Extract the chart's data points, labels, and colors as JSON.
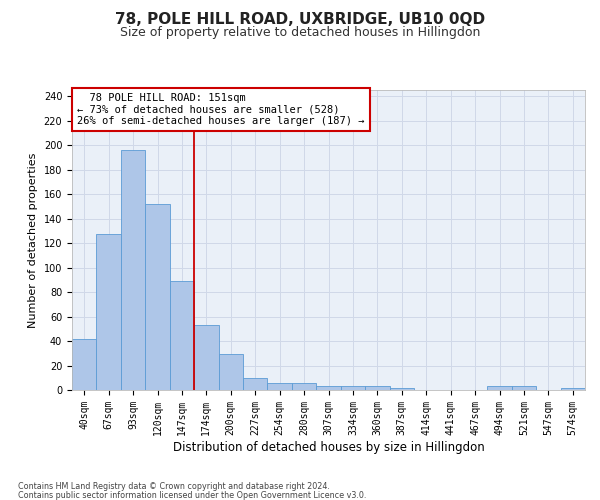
{
  "title1": "78, POLE HILL ROAD, UXBRIDGE, UB10 0QD",
  "title2": "Size of property relative to detached houses in Hillingdon",
  "xlabel": "Distribution of detached houses by size in Hillingdon",
  "ylabel": "Number of detached properties",
  "footer1": "Contains HM Land Registry data © Crown copyright and database right 2024.",
  "footer2": "Contains public sector information licensed under the Open Government Licence v3.0.",
  "annotation_line1": "78 POLE HILL ROAD: 151sqm",
  "annotation_line2": "← 73% of detached houses are smaller (528)",
  "annotation_line3": "26% of semi-detached houses are larger (187) →",
  "bar_labels": [
    "40sqm",
    "67sqm",
    "93sqm",
    "120sqm",
    "147sqm",
    "174sqm",
    "200sqm",
    "227sqm",
    "254sqm",
    "280sqm",
    "307sqm",
    "334sqm",
    "360sqm",
    "387sqm",
    "414sqm",
    "441sqm",
    "467sqm",
    "494sqm",
    "521sqm",
    "547sqm",
    "574sqm"
  ],
  "bar_values": [
    42,
    127,
    196,
    152,
    89,
    53,
    29,
    10,
    6,
    6,
    3,
    3,
    3,
    2,
    0,
    0,
    0,
    3,
    3,
    0,
    2
  ],
  "bar_color": "#aec6e8",
  "bar_edgecolor": "#5b9bd5",
  "vline_x": 4.5,
  "vline_color": "#cc0000",
  "ylim": [
    0,
    245
  ],
  "yticks": [
    0,
    20,
    40,
    60,
    80,
    100,
    120,
    140,
    160,
    180,
    200,
    220,
    240
  ],
  "grid_color": "#d0d8e8",
  "bg_color": "#eaf0f8",
  "annotation_box_color": "#cc0000",
  "title1_fontsize": 11,
  "title2_fontsize": 9,
  "annotation_fontsize": 7.5,
  "xlabel_fontsize": 8.5,
  "ylabel_fontsize": 8,
  "tick_fontsize": 7,
  "footer_fontsize": 5.8
}
